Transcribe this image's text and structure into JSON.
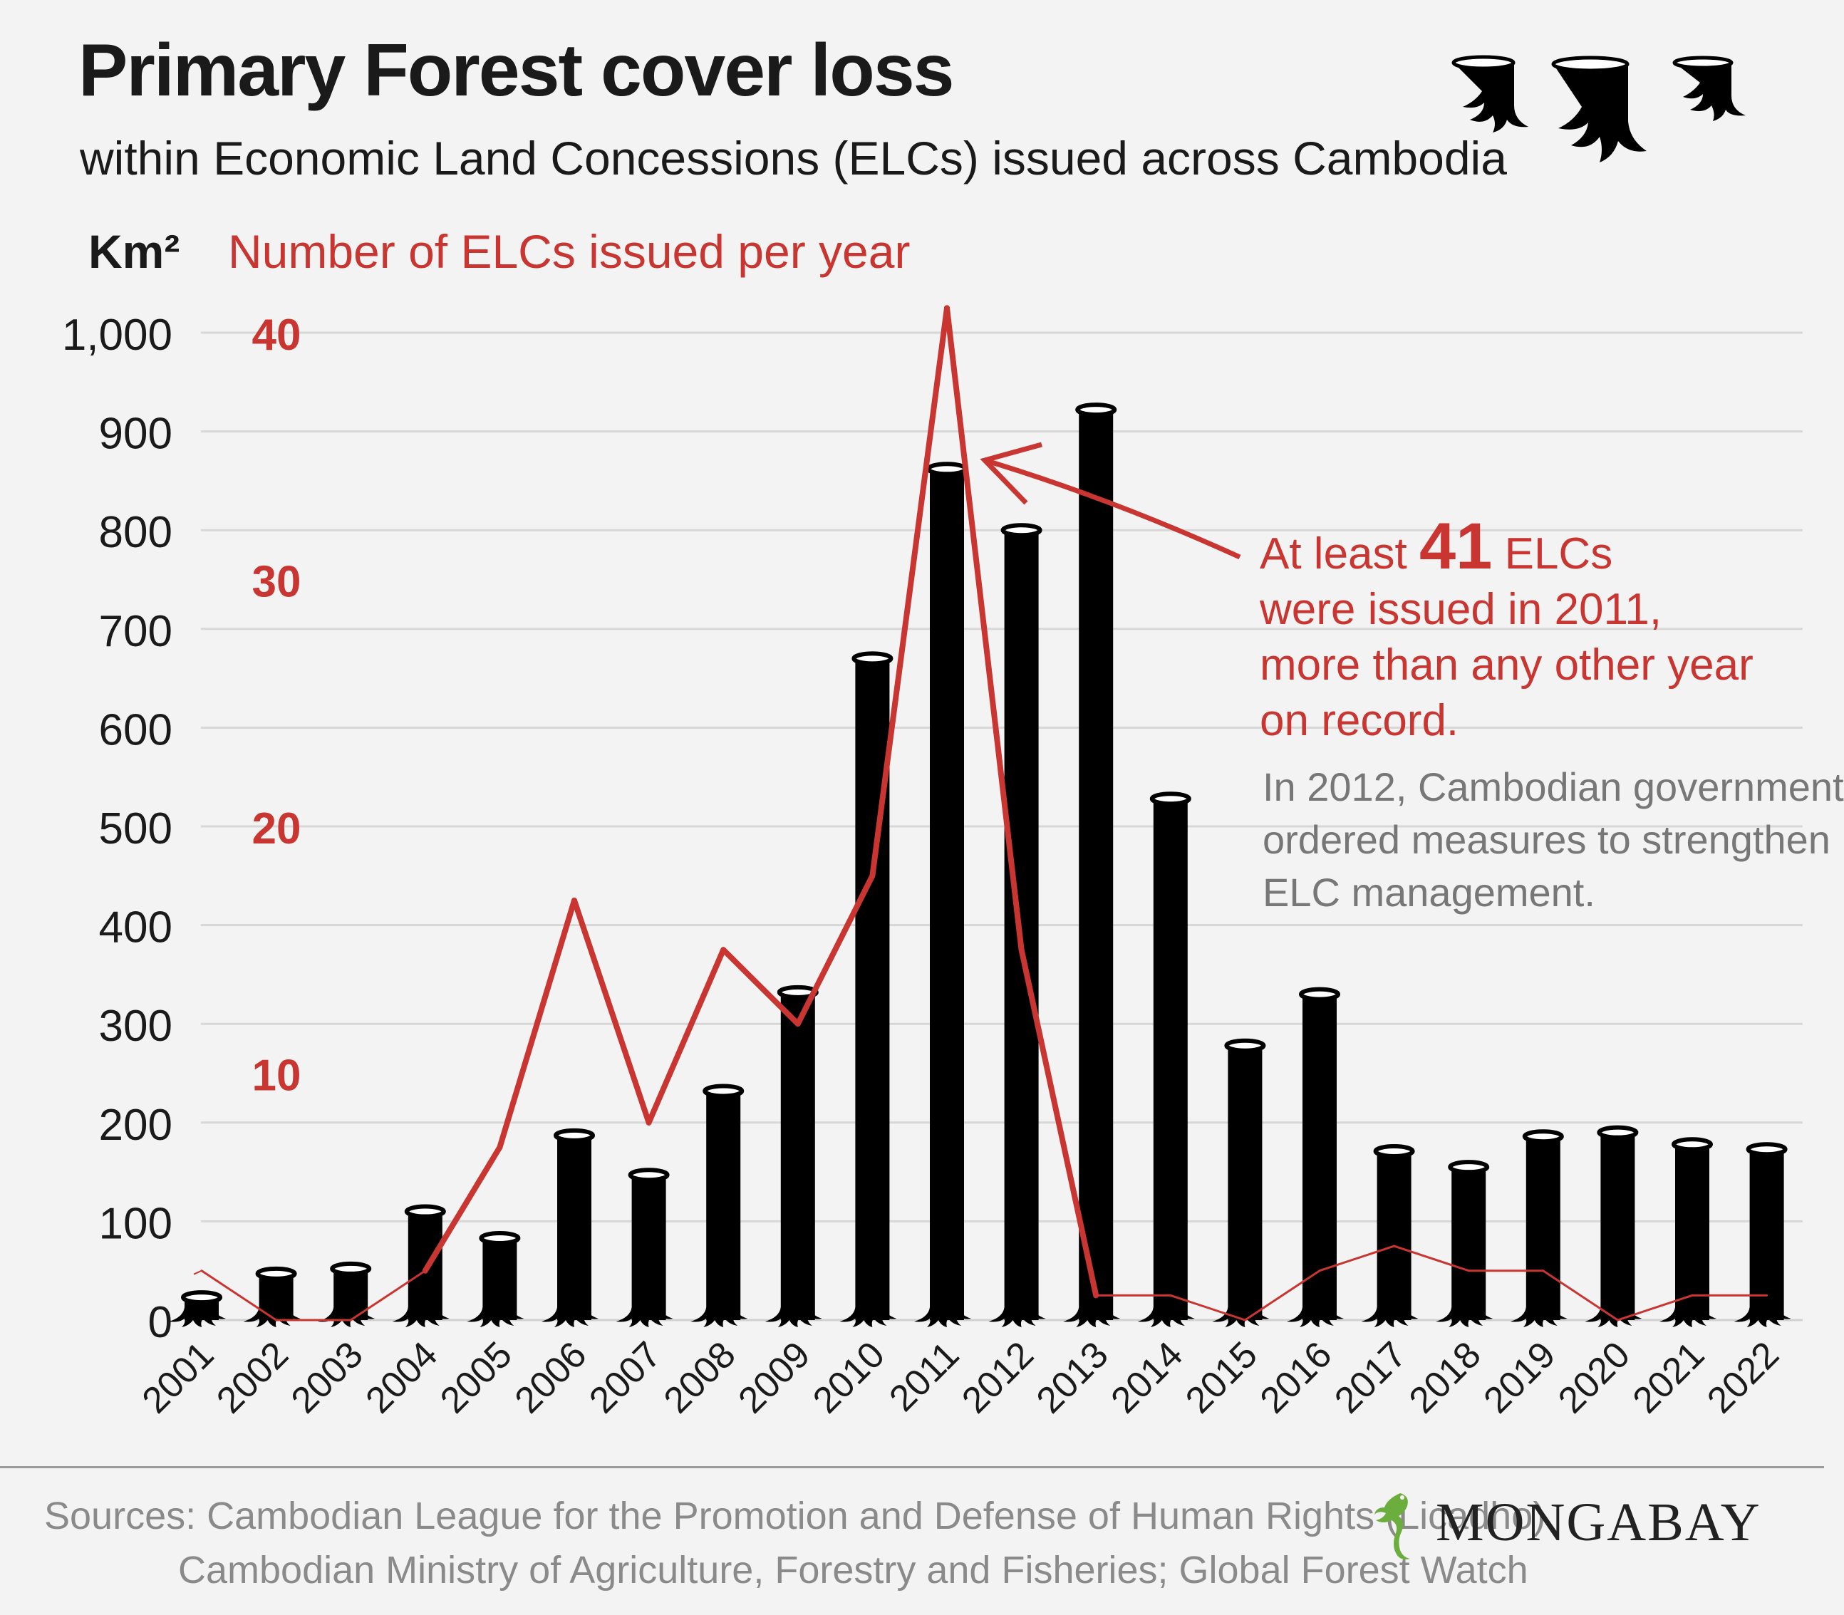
{
  "title": "Primary Forest cover loss",
  "subtitle": "within Economic Land Concessions (ELCs) issued across Cambodia",
  "colors": {
    "accent": "#c93530",
    "bar": "#000000",
    "text": "#1a1a1a",
    "muted": "#777777"
  },
  "chart_data": {
    "type": "bar",
    "title": "Primary Forest cover loss",
    "xlabel": "",
    "ylabel": "Km²",
    "y2label": "Number of ELCs issued per year",
    "ylim": [
      0,
      1000
    ],
    "y2lim": [
      0,
      40
    ],
    "yticks": [
      0,
      100,
      200,
      300,
      400,
      500,
      600,
      700,
      800,
      900,
      1000
    ],
    "ytick_labels": [
      "0",
      "100",
      "200",
      "300",
      "400",
      "500",
      "600",
      "700",
      "800",
      "900",
      "1,000"
    ],
    "y2ticks": [
      10,
      20,
      30,
      40
    ],
    "y2tick_labels": [
      "10",
      "20",
      "30",
      "40"
    ],
    "grid": true,
    "categories": [
      "2001",
      "2002",
      "2003",
      "2004",
      "2005",
      "2006",
      "2007",
      "2008",
      "2009",
      "2010",
      "2011",
      "2012",
      "2013",
      "2014",
      "2015",
      "2016",
      "2017",
      "2018",
      "2019",
      "2020",
      "2021",
      "2022"
    ],
    "series": [
      {
        "name": "Primary forest cover loss (Km²)",
        "type": "bar",
        "axis": "left",
        "color": "#000000",
        "values": [
          23,
          47,
          52,
          110,
          83,
          187,
          147,
          232,
          332,
          670,
          862,
          800,
          922,
          528,
          278,
          330,
          171,
          155,
          186,
          190,
          178,
          173
        ]
      },
      {
        "name": "Number of ELCs issued per year",
        "type": "line",
        "axis": "right",
        "color": "#c93530",
        "values": [
          2,
          0,
          0,
          2,
          7,
          17,
          8,
          15,
          12,
          18,
          41,
          15,
          1,
          1,
          0,
          2,
          3,
          2,
          2,
          0,
          1,
          1
        ]
      }
    ],
    "annotation": {
      "line1_pre": "At least",
      "line1_num": "41",
      "line1_post": "ELCs",
      "line2": "were issued in 2011,",
      "line3": "more than any other year",
      "line4": "on record."
    },
    "note": {
      "line1": "In 2012, Cambodian government",
      "line2": "ordered measures to strengthen",
      "line3": "ELC management."
    }
  },
  "footer": {
    "sources_line1": "Sources: Cambodian League for the Promotion and Defense of Human Rights (Licadho)",
    "sources_line2": "Cambodian Ministry of Agriculture, Forestry and Fisheries; Global Forest Watch",
    "logo_text": "MONGABAY"
  },
  "icons": [
    "tree-stump-icon",
    "gecko-logo-icon"
  ],
  "unit_left": "Km²"
}
